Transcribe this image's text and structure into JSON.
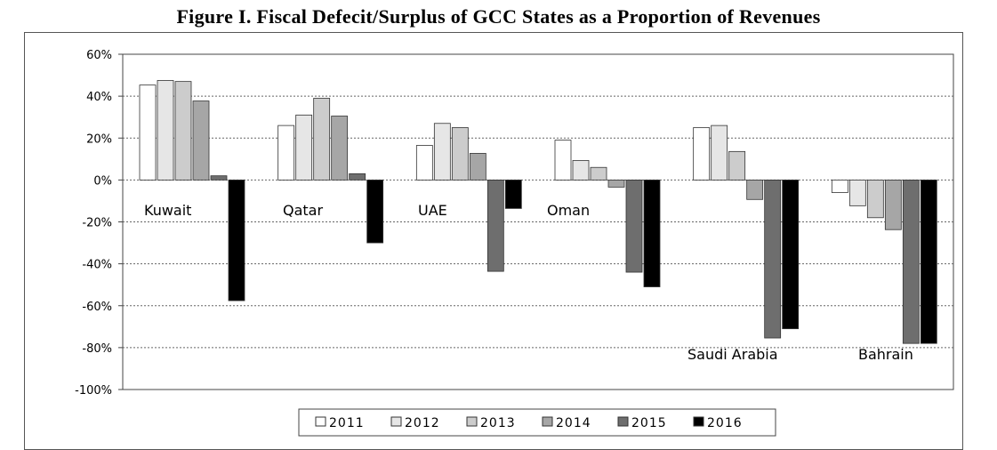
{
  "chart_data": {
    "type": "bar",
    "title": "Figure I. Fiscal Defecit/Surplus of GCC States as a Proportion of Revenues",
    "xlabel": "",
    "ylabel": "",
    "ylim": [
      -100,
      60
    ],
    "yticks": [
      "60%",
      "40%",
      "20%",
      "0%",
      "-20%",
      "-40%",
      "-60%",
      "-80%",
      "-100%"
    ],
    "ytick_values": [
      60,
      40,
      20,
      0,
      -20,
      -40,
      -60,
      -80,
      -100
    ],
    "grid": true,
    "legend_position": "bottom",
    "categories": [
      "Kuwait",
      "Qatar",
      "UAE",
      "Oman",
      "Saudi Arabia",
      "Bahrain"
    ],
    "series": [
      {
        "name": "2011",
        "color": "#ffffff",
        "values": [
          45.3,
          26,
          16.5,
          19,
          25,
          -6
        ]
      },
      {
        "name": "2012",
        "color": "#e6e6e6",
        "values": [
          47.5,
          31,
          27,
          9.3,
          26,
          -12.3
        ]
      },
      {
        "name": "2013",
        "color": "#cccccc",
        "values": [
          47,
          39,
          25,
          6,
          13.6,
          -18
        ]
      },
      {
        "name": "2014",
        "color": "#a6a6a6",
        "values": [
          37.7,
          30.5,
          12.7,
          -3.4,
          -9.3,
          -23.7
        ]
      },
      {
        "name": "2015",
        "color": "#6e6e6e",
        "values": [
          2,
          3,
          -43.6,
          -44,
          -75.4,
          -78
        ]
      },
      {
        "name": "2016",
        "color": "#000000",
        "values": [
          -57.6,
          -30,
          -13.6,
          -51,
          -71,
          -78
        ]
      }
    ]
  }
}
